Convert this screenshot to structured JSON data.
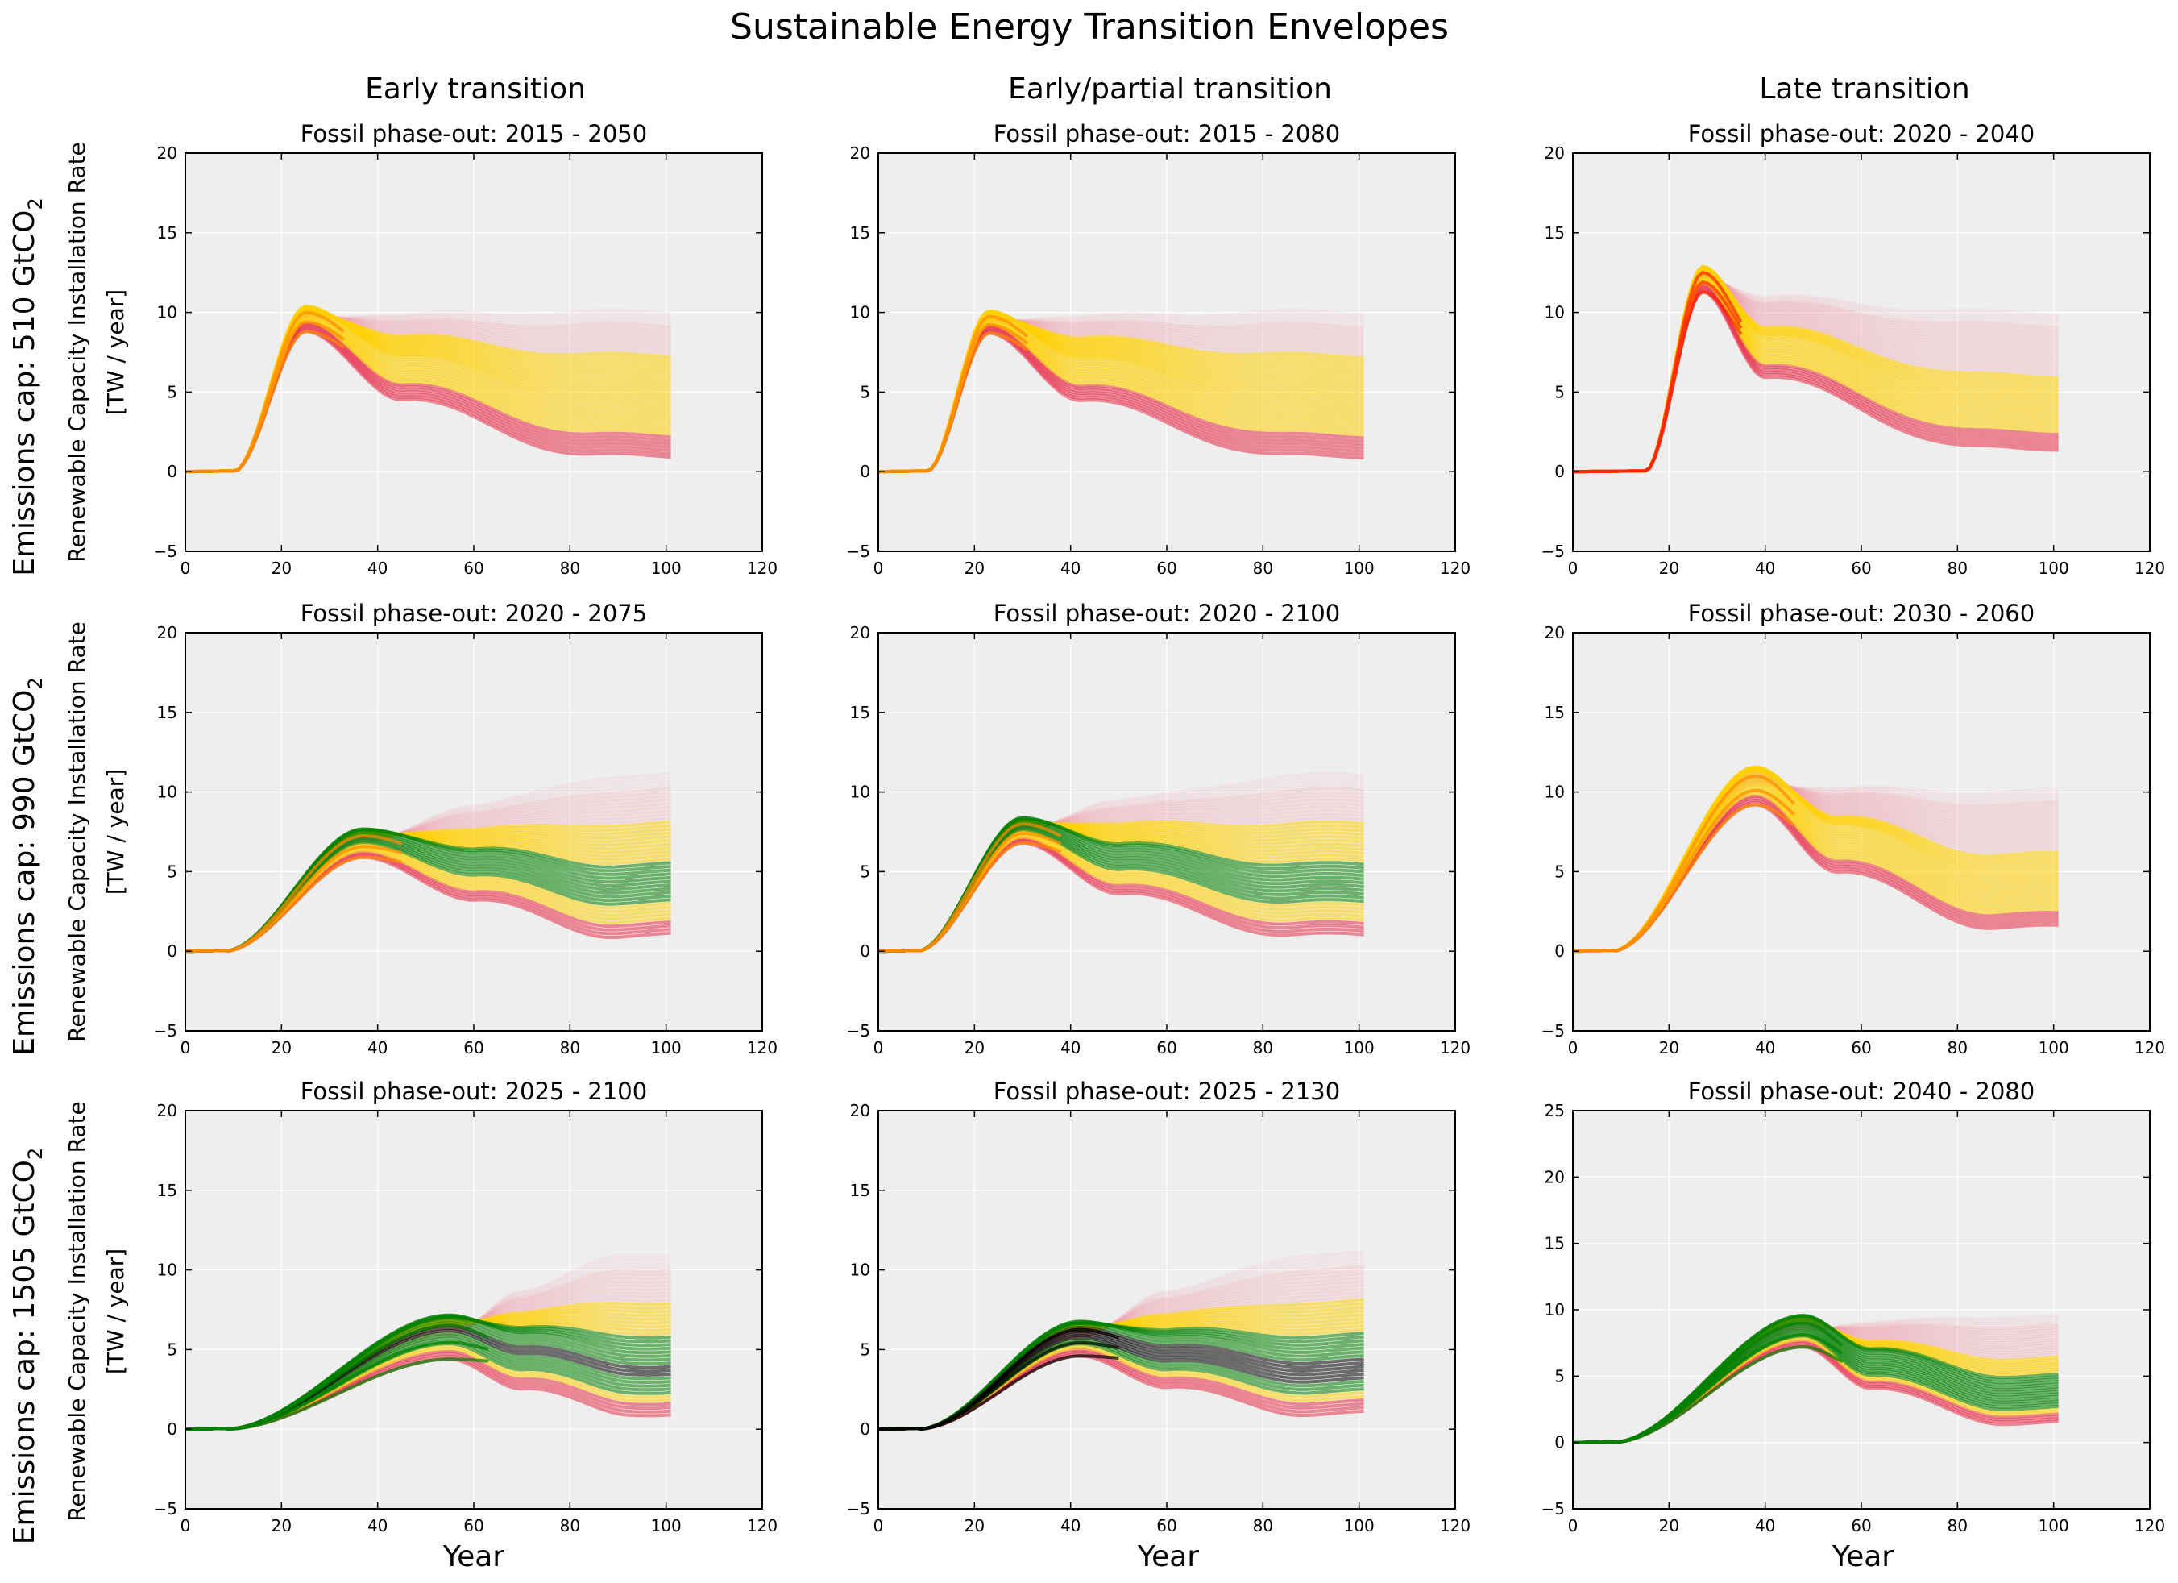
{
  "title": "Sustainable Energy Transition Envelopes",
  "column_titles": [
    "Early transition",
    "Early/partial transition",
    "Late transition"
  ],
  "row_labels": [
    {
      "main": "Emissions cap: 510 GtCO",
      "sub": "2"
    },
    {
      "main": "Emissions cap: 990 GtCO",
      "sub": "2"
    },
    {
      "main": "Emissions cap: 1505 GtCO",
      "sub": "2"
    }
  ],
  "ylabel_line1": "Renewable Capacity Installation Rate",
  "ylabel_line2": "[TW / year]",
  "xlabel": "Year",
  "colors": {
    "background": "#eeeeee",
    "red": "#e8304a",
    "pink": "#f2a0b0",
    "orange": "#ff8a00",
    "redorange": "#ff2200",
    "yellow": "#ffd000",
    "green": "#008000",
    "black": "#000000"
  },
  "chart_data": [
    {
      "type": "line",
      "title": "Fossil phase-out: 2015 - 2050",
      "xlim": [
        0,
        120
      ],
      "ylim": [
        -5,
        20
      ],
      "xticks": [
        0,
        20,
        40,
        60,
        80,
        100,
        120
      ],
      "yticks": [
        -5,
        0,
        5,
        10,
        15,
        20
      ],
      "grid": true,
      "envelope": {
        "start": 10,
        "peak_year": 25,
        "peak_values": [
          8,
          12
        ],
        "settle_year": 45,
        "final_range": [
          1,
          10
        ],
        "end_year": 101
      },
      "bands": {
        "red": [
          0,
          1
        ],
        "yellow": [
          0.15,
          0.72
        ],
        "green": null,
        "black": null,
        "core": "orange"
      }
    },
    {
      "type": "line",
      "title": "Fossil phase-out: 2015 - 2080",
      "xlim": [
        0,
        120
      ],
      "ylim": [
        -5,
        20
      ],
      "xticks": [
        0,
        20,
        40,
        60,
        80,
        100,
        120
      ],
      "yticks": [
        -5,
        0,
        5,
        10,
        15,
        20
      ],
      "grid": true,
      "envelope": {
        "start": 10,
        "peak_year": 23,
        "peak_values": [
          8,
          11.5
        ],
        "settle_year": 42,
        "final_range": [
          1,
          10
        ],
        "end_year": 101
      },
      "bands": {
        "red": [
          0,
          1
        ],
        "yellow": [
          0.15,
          0.72
        ],
        "green": null,
        "black": null,
        "core": "orange"
      }
    },
    {
      "type": "line",
      "title": "Fossil phase-out: 2020 - 2040",
      "xlim": [
        0,
        120
      ],
      "ylim": [
        -5,
        20
      ],
      "xticks": [
        0,
        20,
        40,
        60,
        80,
        100,
        120
      ],
      "yticks": [
        -5,
        0,
        5,
        10,
        15,
        20
      ],
      "grid": true,
      "envelope": {
        "start": 15,
        "peak_year": 27,
        "peak_values": [
          10.5,
          14.5
        ],
        "settle_year": 40,
        "final_range": [
          1.5,
          10
        ],
        "end_year": 101
      },
      "bands": {
        "red": [
          0,
          1
        ],
        "yellow": [
          0.12,
          0.55
        ],
        "green": null,
        "black": null,
        "core": "redorange"
      }
    },
    {
      "type": "line",
      "title": "Fossil phase-out: 2020 - 2075",
      "xlim": [
        0,
        120
      ],
      "ylim": [
        -5,
        20
      ],
      "xticks": [
        0,
        20,
        40,
        60,
        80,
        100,
        120
      ],
      "yticks": [
        -5,
        0,
        5,
        10,
        15,
        20
      ],
      "grid": true,
      "envelope": {
        "start": 8,
        "peak_year": 37,
        "peak_values": [
          5,
          9.5
        ],
        "settle_year": 60,
        "final_range": [
          1,
          11
        ],
        "end_year": 101
      },
      "bands": {
        "red": [
          0,
          1
        ],
        "yellow": [
          0.08,
          0.7
        ],
        "green": [
          0.2,
          0.45
        ],
        "black": null,
        "core": "orange"
      }
    },
    {
      "type": "line",
      "title": "Fossil phase-out: 2020 - 2100",
      "xlim": [
        0,
        120
      ],
      "ylim": [
        -5,
        20
      ],
      "xticks": [
        0,
        20,
        40,
        60,
        80,
        100,
        120
      ],
      "yticks": [
        -5,
        0,
        5,
        10,
        15,
        20
      ],
      "grid": true,
      "envelope": {
        "start": 8,
        "peak_year": 30,
        "peak_values": [
          6,
          10
        ],
        "settle_year": 50,
        "final_range": [
          1,
          11
        ],
        "end_year": 101
      },
      "bands": {
        "red": [
          0,
          1
        ],
        "yellow": [
          0.08,
          0.7
        ],
        "green": [
          0.2,
          0.45
        ],
        "black": null,
        "core": "orange"
      }
    },
    {
      "type": "line",
      "title": "Fossil phase-out: 2030 - 2060",
      "xlim": [
        0,
        120
      ],
      "ylim": [
        -5,
        20
      ],
      "xticks": [
        0,
        20,
        40,
        60,
        80,
        100,
        120
      ],
      "yticks": [
        -5,
        0,
        5,
        10,
        15,
        20
      ],
      "grid": true,
      "envelope": {
        "start": 8,
        "peak_year": 38,
        "peak_values": [
          8,
          14
        ],
        "settle_year": 55,
        "final_range": [
          1.5,
          10
        ],
        "end_year": 101
      },
      "bands": {
        "red": [
          0,
          1
        ],
        "yellow": [
          0.1,
          0.55
        ],
        "green": null,
        "black": null,
        "core": "orange"
      }
    },
    {
      "type": "line",
      "title": "Fossil phase-out: 2025 - 2100",
      "xlim": [
        0,
        120
      ],
      "ylim": [
        -5,
        20
      ],
      "xticks": [
        0,
        20,
        40,
        60,
        80,
        100,
        120
      ],
      "yticks": [
        -5,
        0,
        5,
        10,
        15,
        20
      ],
      "grid": true,
      "envelope": {
        "start": 8,
        "peak_year": 55,
        "peak_values": [
          3,
          10
        ],
        "settle_year": 70,
        "final_range": [
          1,
          11
        ],
        "end_year": 101
      },
      "bands": {
        "red": [
          0,
          1
        ],
        "yellow": [
          0.08,
          0.72
        ],
        "green": [
          0.12,
          0.5
        ],
        "black": [
          0.25,
          0.32
        ],
        "core": "green"
      }
    },
    {
      "type": "line",
      "title": "Fossil phase-out: 2025 - 2130",
      "xlim": [
        0,
        120
      ],
      "ylim": [
        -5,
        20
      ],
      "xticks": [
        0,
        20,
        40,
        60,
        80,
        100,
        120
      ],
      "yticks": [
        -5,
        0,
        5,
        10,
        15,
        20
      ],
      "grid": true,
      "envelope": {
        "start": 8,
        "peak_year": 42,
        "peak_values": [
          3.5,
          9
        ],
        "settle_year": 60,
        "final_range": [
          1,
          11
        ],
        "end_year": 101
      },
      "bands": {
        "red": [
          0,
          1
        ],
        "yellow": [
          0.08,
          0.72
        ],
        "green": [
          0.12,
          0.5
        ],
        "black": [
          0.2,
          0.34
        ],
        "core": "black"
      }
    },
    {
      "type": "line",
      "title": "Fossil phase-out: 2040 - 2080",
      "xlim": [
        0,
        120
      ],
      "ylim": [
        -5,
        25
      ],
      "xticks": [
        0,
        20,
        40,
        60,
        80,
        100,
        120
      ],
      "yticks": [
        -5,
        0,
        5,
        10,
        15,
        20,
        25
      ],
      "grid": true,
      "envelope": {
        "start": 8,
        "peak_year": 48,
        "peak_values": [
          6,
          12
        ],
        "settle_year": 62,
        "final_range": [
          1.5,
          9.5
        ],
        "end_year": 101
      },
      "bands": {
        "red": [
          0,
          1
        ],
        "yellow": [
          0.08,
          0.62
        ],
        "green": [
          0.12,
          0.45
        ],
        "black": null,
        "core": "green"
      }
    }
  ]
}
